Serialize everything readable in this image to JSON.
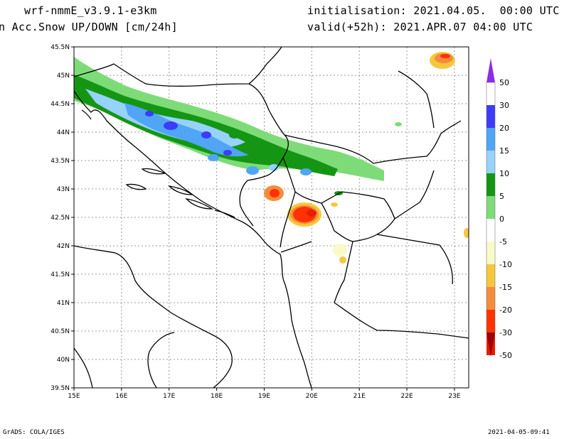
{
  "header": {
    "model": "wrf-nmmE_v3.9.1-e3km",
    "field": "n Acc.Snow UP/DOWN [cm/24h]",
    "initialisation": "initialisation: 2021.04.05.  00:00 UTC",
    "valid": "valid(+52h): 2021.APR.07 04:00 UTC"
  },
  "map": {
    "lon_range": [
      15,
      23.3
    ],
    "lat_range": [
      39.5,
      45.5
    ],
    "lon_ticks": [
      15,
      16,
      17,
      18,
      19,
      20,
      21,
      22,
      23
    ],
    "lon_labels": [
      "15E",
      "16E",
      "17E",
      "18E",
      "19E",
      "20E",
      "21E",
      "22E",
      "23E"
    ],
    "lat_ticks": [
      39.5,
      40,
      40.5,
      41,
      41.5,
      42,
      42.5,
      43,
      43.5,
      44,
      44.5,
      45,
      45.5
    ],
    "lat_labels": [
      "39.5N",
      "40N",
      "40.5N",
      "41N",
      "41.5N",
      "42N",
      "42.5N",
      "43N",
      "43.5N",
      "44N",
      "44.5N",
      "45N",
      "45.5N"
    ],
    "grid": true
  },
  "legend": {
    "colors": [
      "#a00000",
      "#e61e00",
      "#ff3200",
      "#f58c3c",
      "#f5c83c",
      "#fafac8",
      "#ffffff",
      "#7ddc78",
      "#149614",
      "#96d2fa",
      "#50a5f5",
      "#3c3cfa",
      "#8c2de6"
    ],
    "labels": [
      "-50",
      "-30",
      "-20",
      "-15",
      "-10",
      "-5",
      "0",
      "5",
      "10",
      "15",
      "20",
      "30",
      "50"
    ],
    "top_color": "#8c2de6",
    "bottom_color": "#a00000"
  },
  "footer": {
    "left": "GrADS: COLA/IGES",
    "right": "2021-04-05-09:41"
  }
}
